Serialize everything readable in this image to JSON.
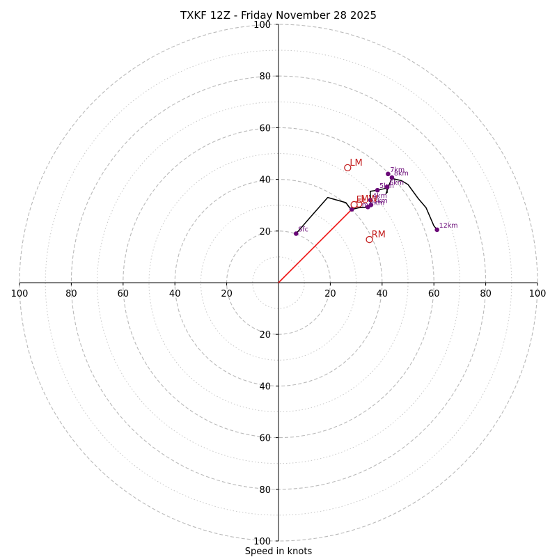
{
  "chart_data": {
    "type": "hodograph",
    "title": "TXKF 12Z - Friday November 28 2025",
    "xlabel": "Speed in knots",
    "range": [
      -100,
      100
    ],
    "ring_major": [
      20,
      40,
      60,
      80,
      100
    ],
    "ring_minor": [
      10,
      30,
      50,
      70,
      90
    ],
    "ticks_x": [
      {
        "value": -100,
        "label": "100"
      },
      {
        "value": -80,
        "label": "80"
      },
      {
        "value": -60,
        "label": "60"
      },
      {
        "value": -40,
        "label": "40"
      },
      {
        "value": -20,
        "label": "20"
      },
      {
        "value": 20,
        "label": "20"
      },
      {
        "value": 40,
        "label": "40"
      },
      {
        "value": 60,
        "label": "60"
      },
      {
        "value": 80,
        "label": "80"
      },
      {
        "value": 100,
        "label": "100"
      }
    ],
    "ticks_y": [
      {
        "value": 100,
        "label": "100"
      },
      {
        "value": 80,
        "label": "80"
      },
      {
        "value": 60,
        "label": "60"
      },
      {
        "value": 40,
        "label": "40"
      },
      {
        "value": 20,
        "label": "20"
      },
      {
        "value": -20,
        "label": "20"
      },
      {
        "value": -40,
        "label": "40"
      },
      {
        "value": -60,
        "label": "60"
      },
      {
        "value": -80,
        "label": "80"
      },
      {
        "value": -100,
        "label": "100"
      }
    ],
    "hodograph_line": [
      [
        6.8,
        19.0
      ],
      [
        12.0,
        25.0
      ],
      [
        19.0,
        33.0
      ],
      [
        26.0,
        31.0
      ],
      [
        28.0,
        28.3
      ],
      [
        31.0,
        29.0
      ],
      [
        34.5,
        29.2
      ],
      [
        35.7,
        30.0
      ],
      [
        35.4,
        35.4
      ],
      [
        38.2,
        35.8
      ],
      [
        41.8,
        36.6
      ],
      [
        42.0,
        35.0
      ],
      [
        41.5,
        34.5
      ],
      [
        43.8,
        40.7
      ],
      [
        44.5,
        40.2
      ],
      [
        47.5,
        39.5
      ],
      [
        50.0,
        38.0
      ],
      [
        54.0,
        32.5
      ],
      [
        57.0,
        29.0
      ],
      [
        60.0,
        22.0
      ],
      [
        61.2,
        20.5
      ]
    ],
    "height_points": [
      {
        "label": "Sfc",
        "u": 6.8,
        "v": 19.0
      },
      {
        "label": "1km",
        "u": 28.3,
        "v": 28.4
      },
      {
        "label": "2km",
        "u": 34.5,
        "v": 29.3
      },
      {
        "label": "3km",
        "u": 35.7,
        "v": 30.1
      },
      {
        "label": "4km",
        "u": 35.5,
        "v": 32.0
      },
      {
        "label": "5km",
        "u": 38.2,
        "v": 35.8
      },
      {
        "label": "6km",
        "u": 42.0,
        "v": 37.0
      },
      {
        "label": "7km",
        "u": 42.3,
        "v": 42.1
      },
      {
        "label": "8km",
        "u": 43.8,
        "v": 40.7
      },
      {
        "label": "12km",
        "u": 61.2,
        "v": 20.5
      }
    ],
    "storm_motion": [
      {
        "label": "LM",
        "u": 26.7,
        "v": 44.5
      },
      {
        "label": "RM",
        "u": 35.1,
        "v": 16.7
      },
      {
        "label": "MW",
        "u": 31.0,
        "v": 30.5
      },
      {
        "label": "EL",
        "u": 29.2,
        "v": 30.2
      }
    ],
    "shear_vector": {
      "from": [
        0,
        0
      ],
      "to": [
        28.3,
        28.4
      ]
    },
    "colors": {
      "line": "#000000",
      "height_marker": "#6a0a78",
      "height_label": "#6a0a78",
      "storm": "#c42020",
      "shear": "#ee1111",
      "ring": "#b9b9b9"
    }
  }
}
